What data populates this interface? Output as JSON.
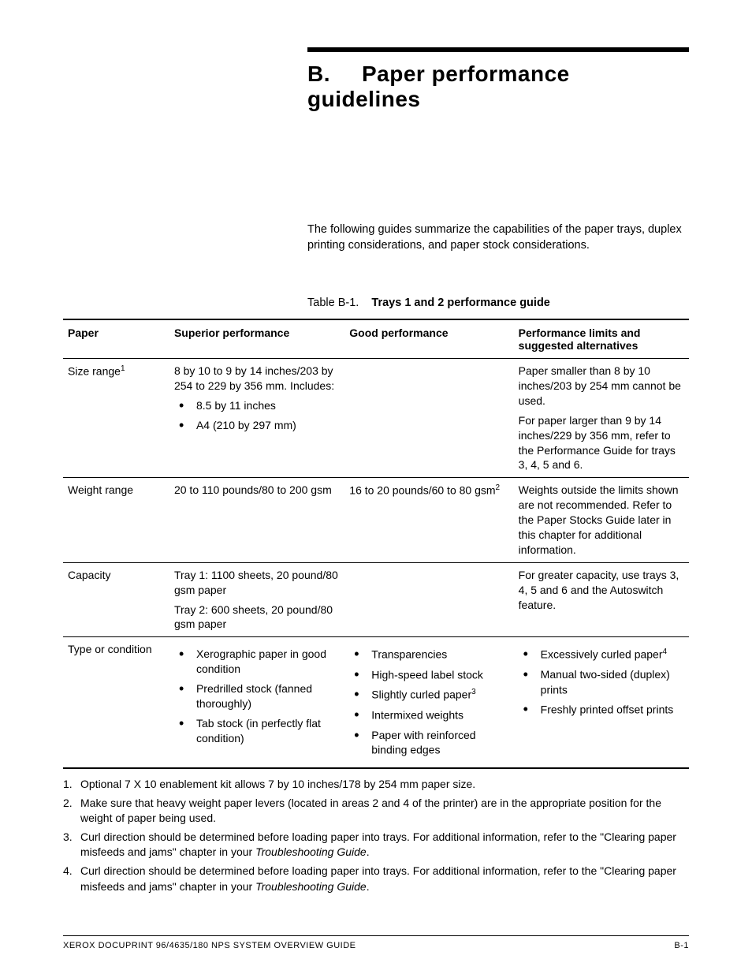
{
  "header": {
    "letter": "B.",
    "title": "Paper performance guidelines"
  },
  "intro": "The following guides summarize the capabilities of the paper trays, duplex printing considerations, and paper stock considerations.",
  "table_caption": {
    "label": "Table B-1.",
    "title": "Trays 1 and 2 performance guide"
  },
  "columns": {
    "c1": "Paper",
    "c2": "Superior performance",
    "c3": "Good performance",
    "c4": "Performance limits and suggested alternatives"
  },
  "rows": {
    "size_range": {
      "label": "Size range",
      "label_sup": "1",
      "superior_text": "8 by 10 to 9 by 14 inches/203 by 254 to 229 by 356 mm. Includes:",
      "superior_items": [
        "8.5 by 11 inches",
        "A4 (210 by 297 mm)"
      ],
      "good": "",
      "limits_p1": "Paper smaller than 8 by 10 inches/203 by 254 mm cannot be used.",
      "limits_p2": "For paper larger than 9 by 14 inches/229 by 356 mm, refer to the Performance Guide for trays 3, 4, 5 and 6."
    },
    "weight_range": {
      "label": "Weight range",
      "superior": "20 to 110 pounds/80 to 200 gsm",
      "good": "16 to 20 pounds/60 to 80 gsm",
      "good_sup": "2",
      "limits": "Weights outside the limits shown are not recommended. Refer to the Paper Stocks Guide later in this chapter for additional information."
    },
    "capacity": {
      "label": "Capacity",
      "superior_p1": "Tray 1:  1100 sheets, 20 pound/80 gsm paper",
      "superior_p2": "Tray 2:  600 sheets, 20 pound/80 gsm paper",
      "good": "",
      "limits": "For greater capacity, use trays 3, 4, 5 and 6 and the Autoswitch feature."
    },
    "type_condition": {
      "label": "Type or condition",
      "superior_items": [
        "Xerographic paper in good condition",
        "Predrilled stock (fanned thoroughly)",
        "Tab stock (in perfectly flat condition)"
      ],
      "good_items": [
        {
          "text": "Transparencies",
          "sup": ""
        },
        {
          "text": "High-speed label stock",
          "sup": ""
        },
        {
          "text": "Slightly curled paper",
          "sup": "3"
        },
        {
          "text": "Intermixed weights",
          "sup": ""
        },
        {
          "text": "Paper with reinforced binding edges",
          "sup": ""
        }
      ],
      "limits_items": [
        {
          "text": "Excessively curled paper",
          "sup": "4"
        },
        {
          "text": "Manual two-sided (duplex) prints",
          "sup": ""
        },
        {
          "text": "Freshly printed offset prints",
          "sup": ""
        }
      ]
    }
  },
  "footnotes": {
    "n1": "Optional 7 X 10 enablement kit allows 7 by 10 inches/178 by 254 mm paper size.",
    "n2": "Make sure that heavy weight paper levers (located in areas 2 and 4 of the printer) are in the appropriate position for the weight of paper being used.",
    "n3_a": "Curl direction should be determined before loading paper into trays. For additional information, refer to the \"Clearing paper misfeeds and jams\" chapter in your ",
    "n3_b": "Troubleshooting Guide",
    "n3_c": ".",
    "n4_a": "Curl direction should be determined before loading paper into trays. For additional information, refer to the \"Clearing paper misfeeds and jams\" chapter in your ",
    "n4_b": "Troubleshooting Guide",
    "n4_c": "."
  },
  "footer": {
    "left": "XEROX DOCUPRINT 96/4635/180 NPS SYSTEM OVERVIEW GUIDE",
    "right": "B-1"
  }
}
